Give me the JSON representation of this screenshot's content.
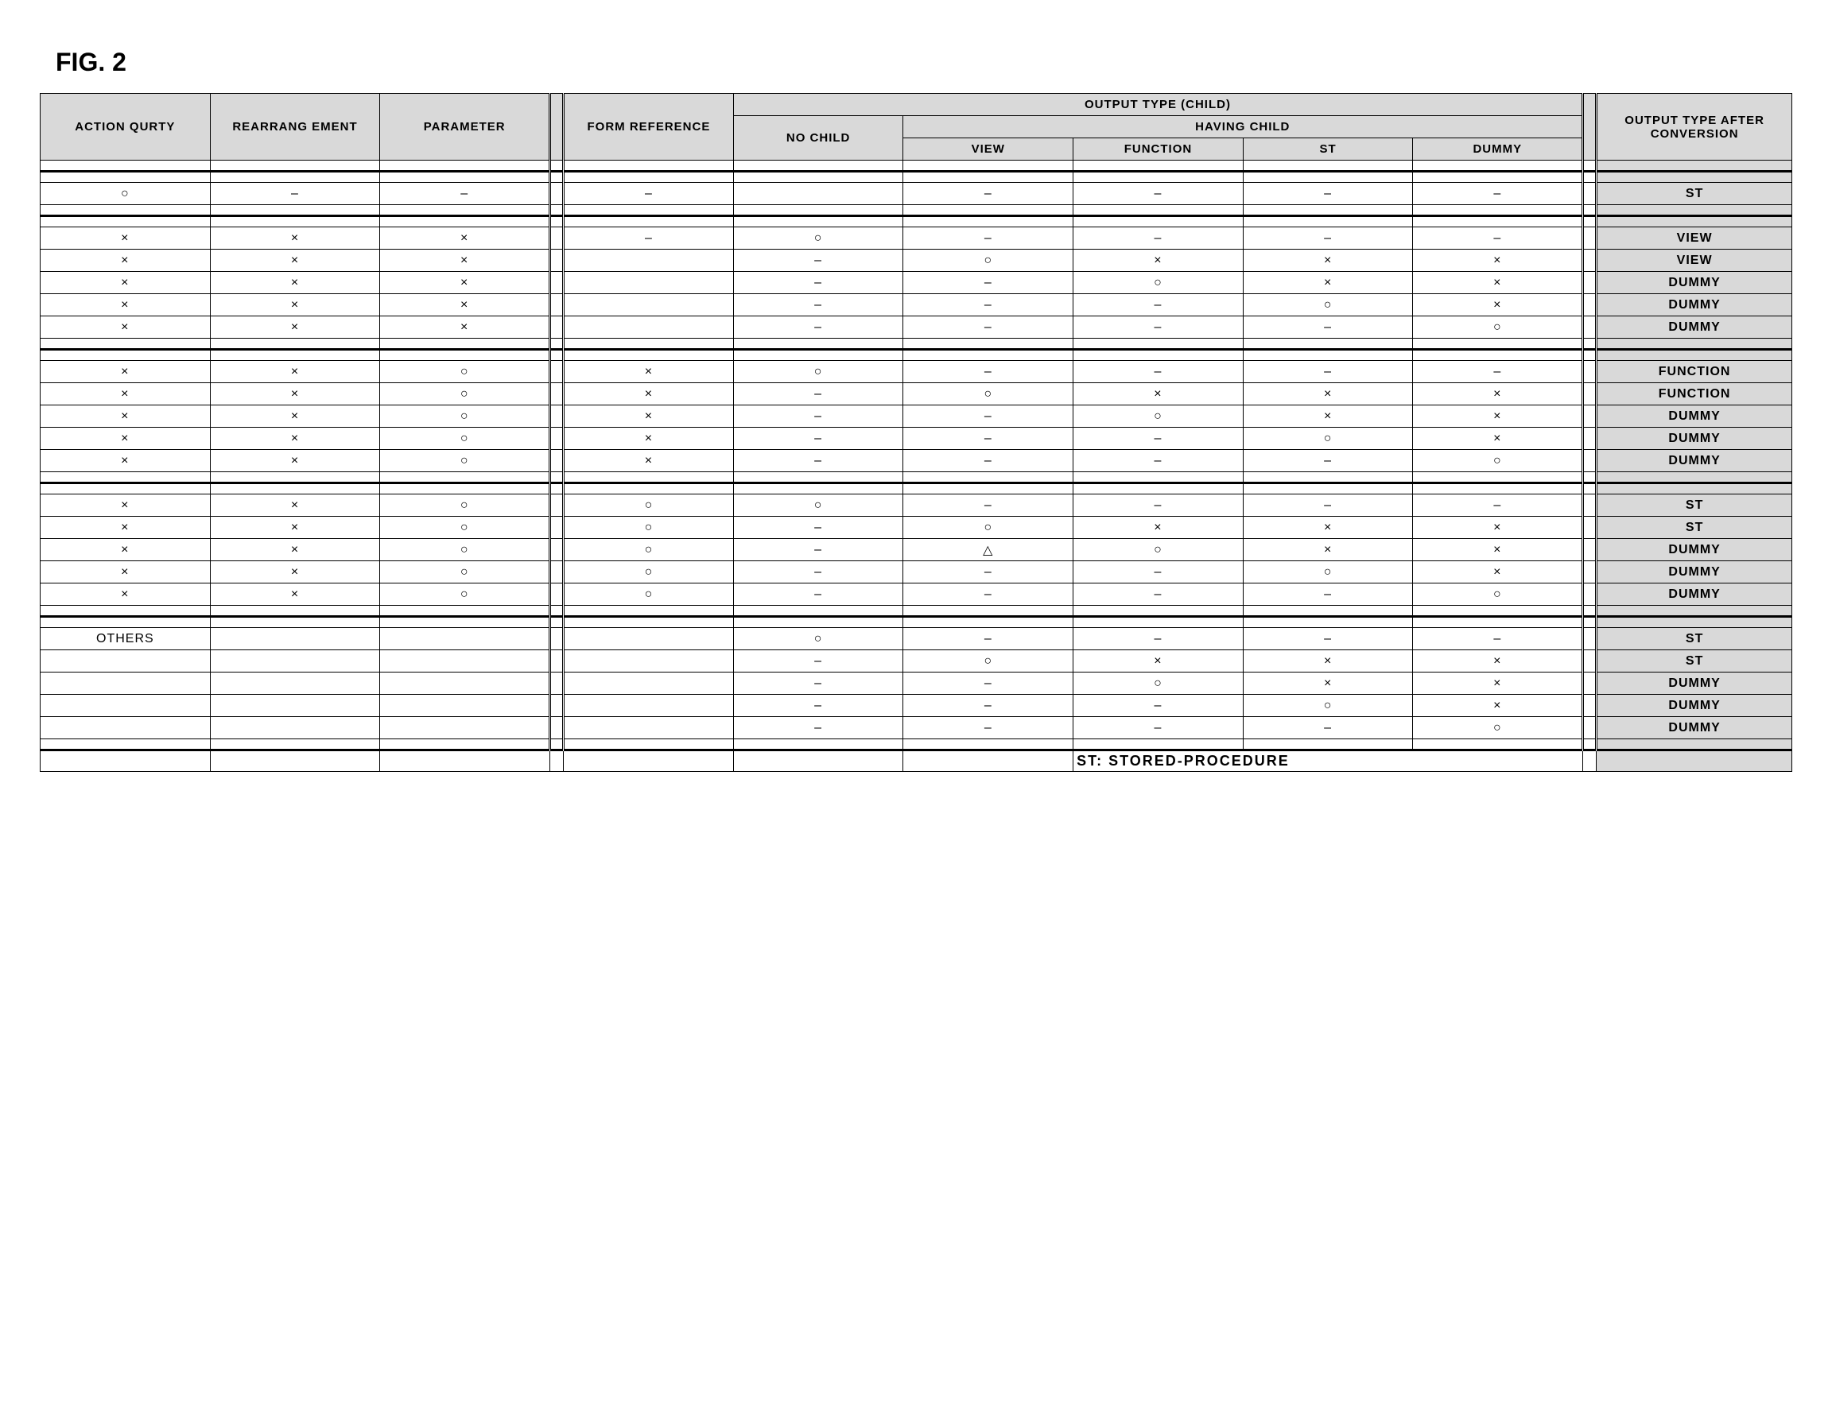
{
  "figure_label": "FIG. 2",
  "headers": {
    "action_qurty": "ACTION QURTY",
    "rearrangement": "REARRANG EMENT",
    "parameter": "PARAMETER",
    "form_reference": "FORM REFERENCE",
    "output_type_child": "OUTPUT TYPE (CHILD)",
    "no_child": "NO CHILD",
    "having_child": "HAVING CHILD",
    "view": "VIEW",
    "function": "FUNCTION",
    "st": "ST",
    "dummy": "DUMMY",
    "output_after": "OUTPUT TYPE AFTER CONVERSION"
  },
  "symbols": {
    "circle": "○",
    "cross": "×",
    "dash": "–",
    "triangle": "△",
    "blank": ""
  },
  "rows": [
    {
      "a": "○",
      "r": "–",
      "p": "–",
      "f": "–",
      "nc": "",
      "v": "–",
      "fn": "–",
      "s": "–",
      "d": "–",
      "out": "ST"
    },
    {
      "a": "×",
      "r": "×",
      "p": "×",
      "f": "–",
      "nc": "○",
      "v": "–",
      "fn": "–",
      "s": "–",
      "d": "–",
      "out": "VIEW"
    },
    {
      "a": "×",
      "r": "×",
      "p": "×",
      "f": "",
      "nc": "–",
      "v": "○",
      "fn": "×",
      "s": "×",
      "d": "×",
      "out": "VIEW"
    },
    {
      "a": "×",
      "r": "×",
      "p": "×",
      "f": "",
      "nc": "–",
      "v": "–",
      "fn": "○",
      "s": "×",
      "d": "×",
      "out": "DUMMY"
    },
    {
      "a": "×",
      "r": "×",
      "p": "×",
      "f": "",
      "nc": "–",
      "v": "–",
      "fn": "–",
      "s": "○",
      "d": "×",
      "out": "DUMMY"
    },
    {
      "a": "×",
      "r": "×",
      "p": "×",
      "f": "",
      "nc": "–",
      "v": "–",
      "fn": "–",
      "s": "–",
      "d": "○",
      "out": "DUMMY"
    },
    {
      "a": "×",
      "r": "×",
      "p": "○",
      "f": "×",
      "nc": "○",
      "v": "–",
      "fn": "–",
      "s": "–",
      "d": "–",
      "out": "FUNCTION"
    },
    {
      "a": "×",
      "r": "×",
      "p": "○",
      "f": "×",
      "nc": "–",
      "v": "○",
      "fn": "×",
      "s": "×",
      "d": "×",
      "out": "FUNCTION"
    },
    {
      "a": "×",
      "r": "×",
      "p": "○",
      "f": "×",
      "nc": "–",
      "v": "–",
      "fn": "○",
      "s": "×",
      "d": "×",
      "out": "DUMMY"
    },
    {
      "a": "×",
      "r": "×",
      "p": "○",
      "f": "×",
      "nc": "–",
      "v": "–",
      "fn": "–",
      "s": "○",
      "d": "×",
      "out": "DUMMY"
    },
    {
      "a": "×",
      "r": "×",
      "p": "○",
      "f": "×",
      "nc": "–",
      "v": "–",
      "fn": "–",
      "s": "–",
      "d": "○",
      "out": "DUMMY"
    },
    {
      "a": "×",
      "r": "×",
      "p": "○",
      "f": "○",
      "nc": "○",
      "v": "–",
      "fn": "–",
      "s": "–",
      "d": "–",
      "out": "ST"
    },
    {
      "a": "×",
      "r": "×",
      "p": "○",
      "f": "○",
      "nc": "–",
      "v": "○",
      "fn": "×",
      "s": "×",
      "d": "×",
      "out": "ST"
    },
    {
      "a": "×",
      "r": "×",
      "p": "○",
      "f": "○",
      "nc": "–",
      "v": "△",
      "fn": "○",
      "s": "×",
      "d": "×",
      "out": "DUMMY"
    },
    {
      "a": "×",
      "r": "×",
      "p": "○",
      "f": "○",
      "nc": "–",
      "v": "–",
      "fn": "–",
      "s": "○",
      "d": "×",
      "out": "DUMMY"
    },
    {
      "a": "×",
      "r": "×",
      "p": "○",
      "f": "○",
      "nc": "–",
      "v": "–",
      "fn": "–",
      "s": "–",
      "d": "○",
      "out": "DUMMY"
    },
    {
      "a": "OTHERS",
      "r": "",
      "p": "",
      "f": "",
      "nc": "○",
      "v": "–",
      "fn": "–",
      "s": "–",
      "d": "–",
      "out": "ST"
    },
    {
      "a": "",
      "r": "",
      "p": "",
      "f": "",
      "nc": "–",
      "v": "○",
      "fn": "×",
      "s": "×",
      "d": "×",
      "out": "ST"
    },
    {
      "a": "",
      "r": "",
      "p": "",
      "f": "",
      "nc": "–",
      "v": "–",
      "fn": "○",
      "s": "×",
      "d": "×",
      "out": "DUMMY"
    },
    {
      "a": "",
      "r": "",
      "p": "",
      "f": "",
      "nc": "–",
      "v": "–",
      "fn": "–",
      "s": "○",
      "d": "×",
      "out": "DUMMY"
    },
    {
      "a": "",
      "r": "",
      "p": "",
      "f": "",
      "nc": "–",
      "v": "–",
      "fn": "–",
      "s": "–",
      "d": "○",
      "out": "DUMMY"
    }
  ],
  "group_sizes": [
    1,
    5,
    5,
    5,
    5
  ],
  "footnote": "ST: STORED-PROCEDURE",
  "colors": {
    "header_bg": "#d9d9d9",
    "border": "#000000",
    "background": "#ffffff"
  }
}
